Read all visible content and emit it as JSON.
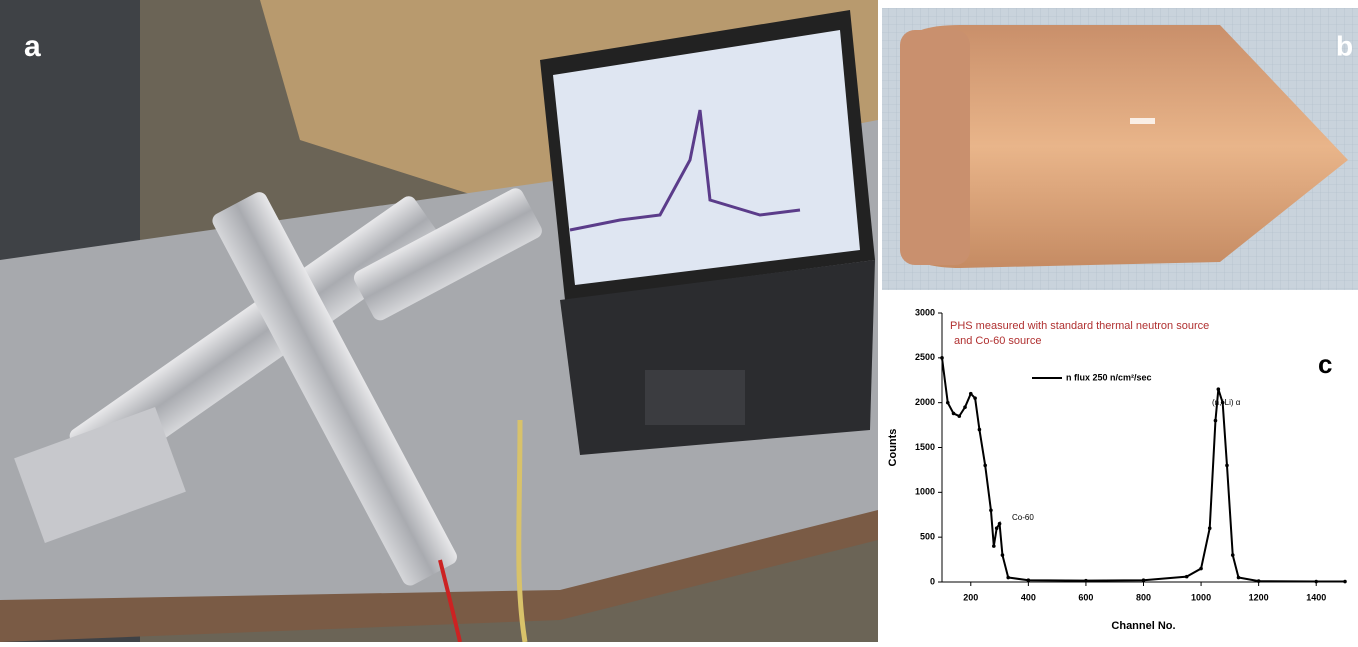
{
  "panels": [
    "a",
    "b",
    "c"
  ],
  "chart_data": {
    "type": "line",
    "title": [
      "PHS measured with standard thermal neutron source",
      "and Co-60 source"
    ],
    "x_label": "Channel No.",
    "y_label": "Counts",
    "annotations": [
      "(n,⁶Li) α",
      "Co-60"
    ],
    "x": [
      100,
      120,
      140,
      160,
      180,
      200,
      215,
      230,
      250,
      270,
      280,
      290,
      300,
      310,
      330,
      400,
      600,
      800,
      950,
      1000,
      1030,
      1050,
      1060,
      1075,
      1090,
      1110,
      1130,
      1200,
      1400,
      1500
    ],
    "series": [
      {
        "name": "n flux 250 n/cm²/sec",
        "color": "#000000",
        "values": [
          2500,
          2000,
          1880,
          1850,
          1950,
          2100,
          2050,
          1700,
          1300,
          800,
          400,
          600,
          650,
          300,
          50,
          20,
          15,
          20,
          60,
          150,
          600,
          1800,
          2150,
          2000,
          1300,
          300,
          50,
          10,
          5,
          5
        ]
      }
    ],
    "xlim": [
      100,
      1500
    ],
    "xticks": [
      200,
      400,
      600,
      800,
      1000,
      1200,
      1400
    ],
    "ylim": [
      0,
      3000
    ],
    "yticks": [
      0,
      500,
      1000,
      1500,
      2000,
      2500,
      3000
    ],
    "grid": false,
    "title_color": "#b03030"
  }
}
